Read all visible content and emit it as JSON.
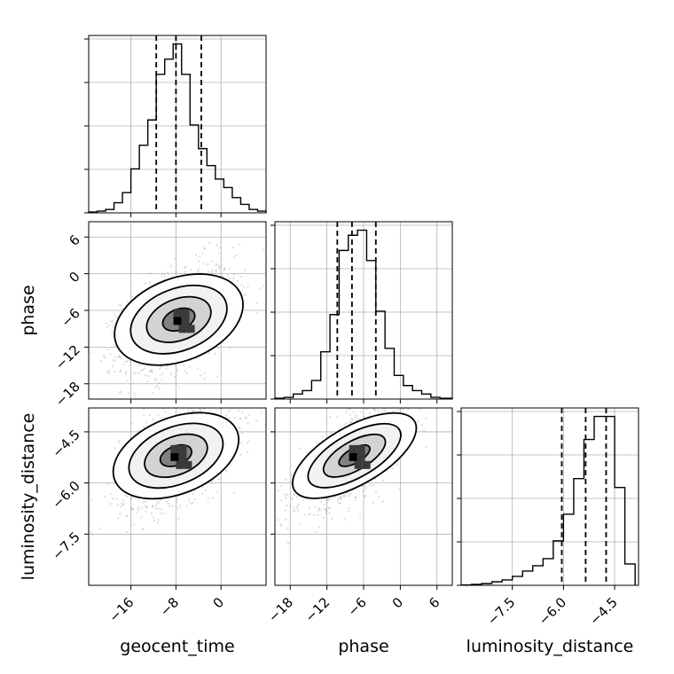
{
  "chart_data": {
    "type": "corner",
    "parameters": [
      "geocent_time",
      "phase",
      "luminosity_distance"
    ],
    "axis_labels": [
      "geocent_time",
      "phase",
      "luminosity_distance"
    ],
    "ranges": {
      "geocent_time": [
        -23.5,
        8
      ],
      "phase": [
        -20.5,
        8.5
      ],
      "luminosity_distance": [
        -9.0,
        -3.8
      ]
    },
    "ticks": {
      "geocent_time": [
        -16,
        -8,
        0
      ],
      "phase": [
        -18,
        -12,
        -6,
        0,
        6
      ],
      "luminosity_distance": [
        -7.5,
        -6.0,
        -4.5
      ]
    },
    "tick_labels": {
      "geocent_time": [
        "−16",
        "−8",
        "0"
      ],
      "phase": [
        "−18",
        "−12",
        "−6",
        "0",
        "6"
      ],
      "luminosity_distance": [
        "−7.5",
        "−6.0",
        "−4.5"
      ]
    },
    "quantiles": {
      "geocent_time": [
        -11.5,
        -8.0,
        -3.5
      ],
      "phase": [
        -10.3,
        -7.9,
        -4.0
      ],
      "luminosity_distance": [
        -6.05,
        -5.35,
        -4.75
      ]
    },
    "histograms": {
      "geocent_time": {
        "bin_edges": [
          -23.5,
          -22,
          -20.5,
          -19,
          -17.5,
          -16,
          -14.5,
          -13,
          -11.5,
          -10,
          -8.5,
          -7,
          -5.5,
          -4,
          -2.5,
          -1,
          0.5,
          2,
          3.5,
          5,
          6.5,
          8
        ],
        "counts": [
          0.5,
          1,
          2,
          6,
          12,
          26,
          40,
          55,
          82,
          91,
          100,
          82,
          52,
          38,
          28,
          20,
          15,
          9,
          5,
          2,
          1
        ]
      },
      "phase": {
        "bin_edges": [
          -20.5,
          -19,
          -17.5,
          -16,
          -14.5,
          -13,
          -11.5,
          -10,
          -8.5,
          -7,
          -5.5,
          -4,
          -2.5,
          -1,
          0.5,
          2,
          3.5,
          5,
          6.5,
          8.5
        ],
        "counts": [
          0.5,
          1,
          3,
          5,
          11,
          28,
          50,
          88,
          97,
          100,
          82,
          52,
          30,
          14,
          8,
          5,
          3,
          1,
          0.5
        ]
      },
      "luminosity_distance": {
        "bin_edges": [
          -9.0,
          -8.7,
          -8.4,
          -8.1,
          -7.8,
          -7.5,
          -7.2,
          -6.9,
          -6.6,
          -6.3,
          -6.0,
          -5.7,
          -5.4,
          -5.1,
          -4.8,
          -4.5,
          -4.2,
          -3.9
        ],
        "counts": [
          0.2,
          0.5,
          1,
          2,
          3,
          5,
          8,
          11,
          15,
          25,
          40,
          60,
          82,
          95,
          95,
          55,
          12
        ]
      }
    },
    "pairs": [
      {
        "x": "geocent_time",
        "y": "phase",
        "center": [
          -7.5,
          -7.5
        ],
        "spread": [
          5.0,
          4.5
        ],
        "correlation": 0.45
      },
      {
        "x": "geocent_time",
        "y": "luminosity_distance",
        "center": [
          -8.0,
          -5.2
        ],
        "spread": [
          5.0,
          0.75
        ],
        "correlation": 0.5
      },
      {
        "x": "phase",
        "y": "luminosity_distance",
        "center": [
          -7.5,
          -5.2
        ],
        "spread": [
          4.5,
          0.75
        ],
        "correlation": 0.7
      }
    ],
    "contour_levels": [
      0.5,
      1.0,
      1.5,
      2.0
    ],
    "grid": true,
    "xlabel": "",
    "ylabel": "",
    "title": ""
  }
}
